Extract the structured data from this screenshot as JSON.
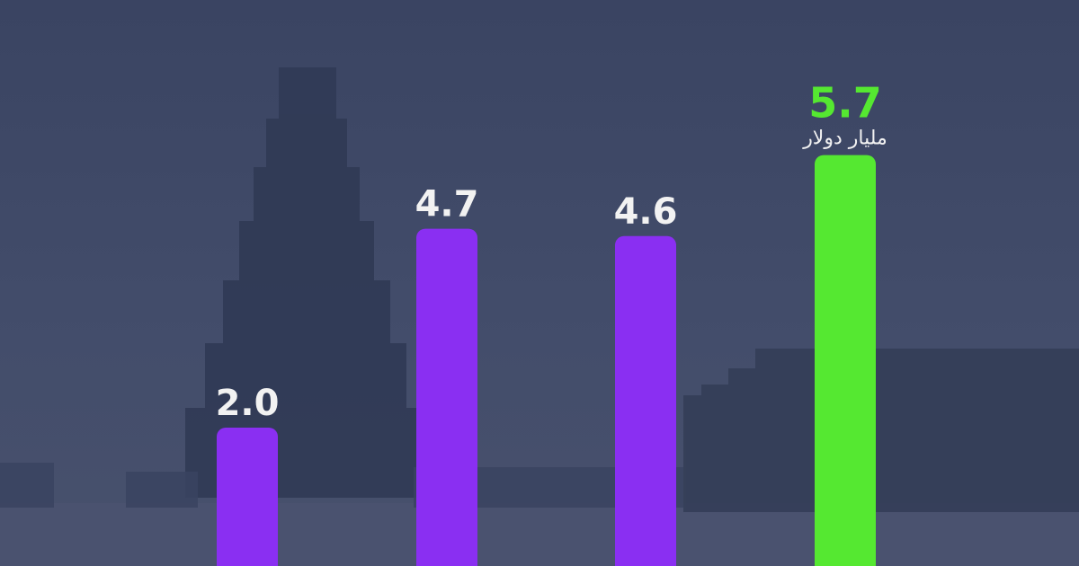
{
  "chart_data": {
    "type": "bar",
    "values": [
      2.0,
      4.7,
      4.6,
      5.7
    ],
    "value_labels": [
      "2.0",
      "4.7",
      "4.6",
      "5.7"
    ],
    "unit_label": "مليار دولار",
    "highlight_index": 3,
    "grid": false
  },
  "colors": {
    "background": "#3d4766",
    "bar": "#8a2ff2",
    "bar_highlight": "#55e831",
    "label": "#f2f2f2",
    "label_highlight": "#55e831"
  }
}
